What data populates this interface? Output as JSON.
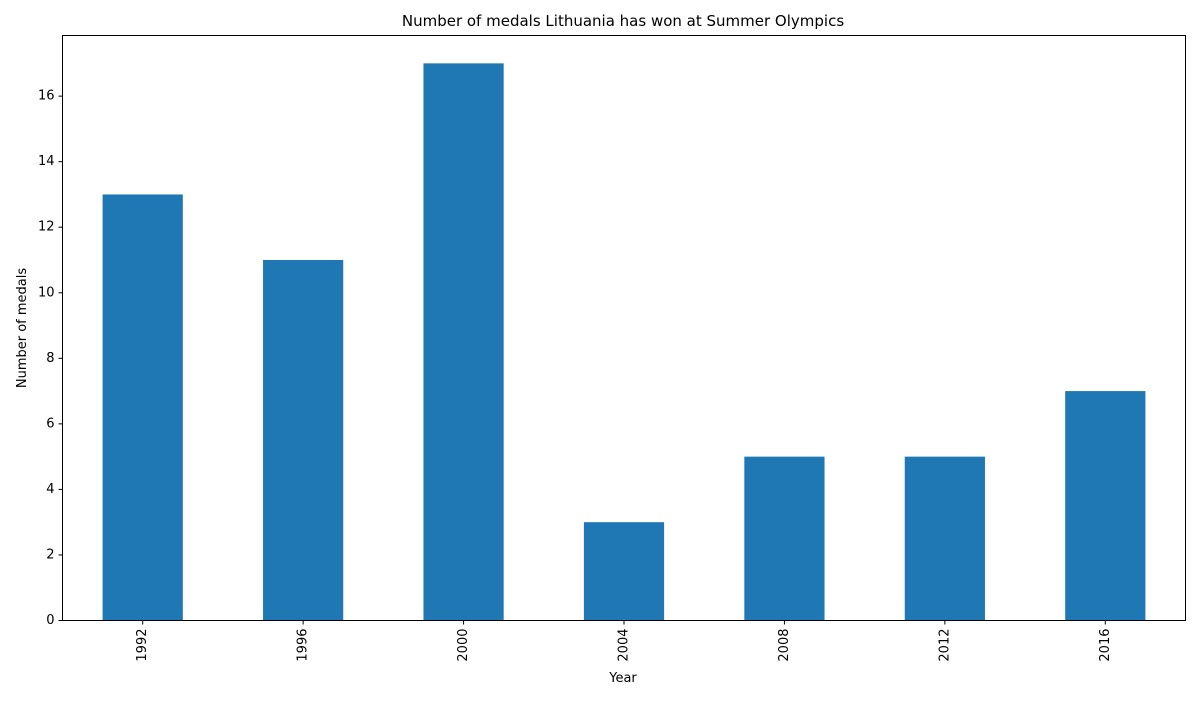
{
  "chart_data": {
    "type": "bar",
    "title": "Number of medals Lithuania has won at Summer Olympics",
    "xlabel": "Year",
    "ylabel": "Number of medals",
    "categories": [
      "1992",
      "1996",
      "2000",
      "2004",
      "2008",
      "2012",
      "2016"
    ],
    "values": [
      13,
      11,
      17,
      3,
      5,
      5,
      7
    ],
    "ylim": [
      0,
      17.85
    ],
    "yticks": [
      0,
      2,
      4,
      6,
      8,
      10,
      12,
      14,
      16
    ],
    "xtick_rotation": "vertical",
    "grid": false,
    "legend": "none",
    "bar_color": "#1f77b4"
  }
}
